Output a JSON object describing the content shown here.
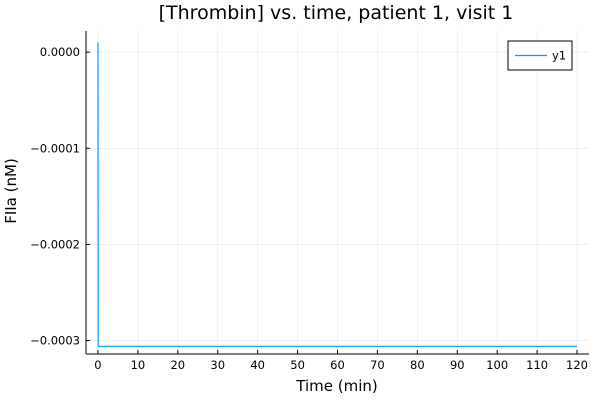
{
  "chart_data": {
    "type": "line",
    "title": "[Thrombin] vs. time, patient 1, visit 1",
    "xlabel": "Time (min)",
    "ylabel": "FIIa (nM)",
    "xlim": [
      -3,
      123
    ],
    "ylim": [
      -0.000314,
      2.2e-05
    ],
    "xticks": [
      0,
      10,
      20,
      30,
      40,
      50,
      60,
      70,
      80,
      90,
      100,
      110,
      120
    ],
    "xtick_labels": [
      "0",
      "10",
      "20",
      "30",
      "40",
      "50",
      "60",
      "70",
      "80",
      "90",
      "100",
      "110",
      "120"
    ],
    "yticks": [
      -0.0003,
      -0.0002,
      -0.0001,
      0.0
    ],
    "ytick_labels": [
      "−0.0003",
      "−0.0002",
      "−0.0001",
      "0.0000"
    ],
    "grid": true,
    "legend_position": "top-right",
    "series": [
      {
        "name": "y1",
        "color": "#009AFA",
        "x": [
          0,
          0.05,
          120
        ],
        "y": [
          1e-05,
          -0.000306,
          -0.000306
        ]
      }
    ]
  }
}
